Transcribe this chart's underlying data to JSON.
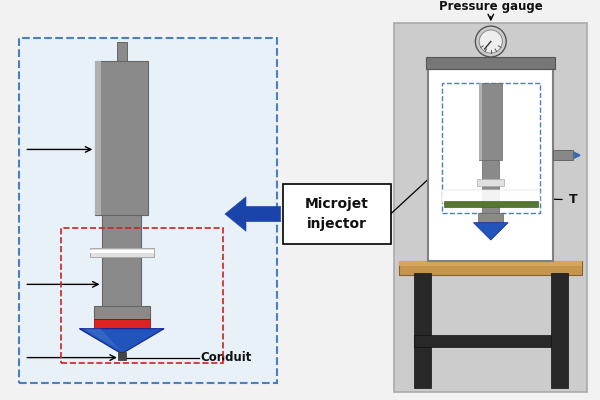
{
  "bg_color": "#f2f2f2",
  "left_panel_bg": "#e8f0f8",
  "left_panel_border": "#4a7fc1",
  "right_panel_bg": "#cccccc",
  "right_panel_border": "#aaaaaa",
  "syringe_body": "#8a8a8a",
  "syringe_light": "#b0b0b0",
  "syringe_dark": "#666666",
  "red_band_color": "#dd2222",
  "blue_cone_color": "#2255bb",
  "blue_cone_light": "#4477cc",
  "white_band_color": "#e0e0e0",
  "conduit_label": "Conduit",
  "microjet_label": "Microjet\ninjector",
  "pressure_label": "Pressure gauge",
  "target_label": "T",
  "arrow_color": "#1a44aa",
  "text_color": "#111111"
}
